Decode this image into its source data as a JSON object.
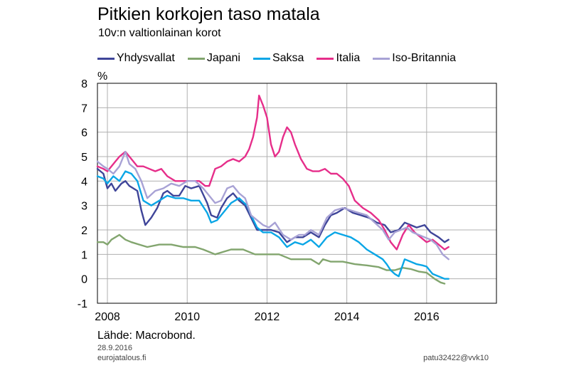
{
  "chart_data": {
    "type": "line",
    "title": "Pitkien korkojen taso matala",
    "subtitle": "10v:n valtionlainan korot",
    "ylabel": "%",
    "ylim": [
      -1,
      8
    ],
    "xlim": [
      2007.75,
      2017.75
    ],
    "y_ticks": [
      "-1",
      "0",
      "1",
      "2",
      "3",
      "4",
      "5",
      "6",
      "7",
      "8"
    ],
    "y_tick_values": [
      -1,
      0,
      1,
      2,
      3,
      4,
      5,
      6,
      7,
      8
    ],
    "x_ticks": [
      "2008",
      "2010",
      "2012",
      "2014",
      "2016"
    ],
    "x_tick_values": [
      2008,
      2010,
      2012,
      2014,
      2016
    ],
    "series": [
      {
        "name": "Yhdysvallat",
        "color": "#3f4599",
        "x": [
          2007.75,
          2007.9,
          2008.0,
          2008.1,
          2008.2,
          2008.35,
          2008.45,
          2008.55,
          2008.65,
          2008.75,
          2008.85,
          2008.95,
          2009.1,
          2009.25,
          2009.4,
          2009.5,
          2009.65,
          2009.8,
          2009.95,
          2010.1,
          2010.3,
          2010.5,
          2010.6,
          2010.75,
          2010.85,
          2011.0,
          2011.15,
          2011.3,
          2011.45,
          2011.6,
          2011.75,
          2011.9,
          2012.1,
          2012.3,
          2012.5,
          2012.7,
          2012.9,
          2013.1,
          2013.3,
          2013.45,
          2013.6,
          2013.75,
          2013.95,
          2014.15,
          2014.35,
          2014.55,
          2014.75,
          2014.95,
          2015.1,
          2015.3,
          2015.45,
          2015.6,
          2015.75,
          2015.95,
          2016.1,
          2016.3,
          2016.45,
          2016.55
        ],
        "values": [
          4.5,
          4.3,
          3.7,
          3.9,
          3.6,
          3.9,
          4.0,
          3.8,
          3.7,
          3.6,
          2.8,
          2.2,
          2.5,
          2.9,
          3.5,
          3.6,
          3.4,
          3.4,
          3.8,
          3.7,
          3.8,
          3.1,
          2.6,
          2.5,
          2.9,
          3.3,
          3.5,
          3.2,
          3.0,
          2.5,
          2.0,
          2.0,
          2.0,
          1.9,
          1.5,
          1.7,
          1.7,
          1.9,
          1.7,
          2.2,
          2.6,
          2.7,
          2.9,
          2.7,
          2.6,
          2.5,
          2.3,
          2.2,
          1.9,
          2.0,
          2.3,
          2.2,
          2.1,
          2.2,
          1.9,
          1.7,
          1.5,
          1.6
        ]
      },
      {
        "name": "Japani",
        "color": "#82a56e",
        "x": [
          2007.75,
          2007.9,
          2008.0,
          2008.1,
          2008.3,
          2008.45,
          2008.6,
          2008.8,
          2009.0,
          2009.3,
          2009.6,
          2009.9,
          2010.2,
          2010.4,
          2010.55,
          2010.7,
          2010.9,
          2011.1,
          2011.4,
          2011.7,
          2012.0,
          2012.3,
          2012.6,
          2012.9,
          2013.1,
          2013.3,
          2013.4,
          2013.6,
          2013.9,
          2014.2,
          2014.5,
          2014.8,
          2015.0,
          2015.2,
          2015.4,
          2015.6,
          2015.8,
          2016.0,
          2016.2,
          2016.35,
          2016.45
        ],
        "values": [
          1.5,
          1.5,
          1.4,
          1.6,
          1.8,
          1.6,
          1.5,
          1.4,
          1.3,
          1.4,
          1.4,
          1.3,
          1.3,
          1.2,
          1.1,
          1.0,
          1.1,
          1.2,
          1.2,
          1.0,
          1.0,
          1.0,
          0.8,
          0.8,
          0.8,
          0.6,
          0.8,
          0.7,
          0.7,
          0.6,
          0.55,
          0.48,
          0.35,
          0.35,
          0.45,
          0.4,
          0.3,
          0.25,
          0.0,
          -0.15,
          -0.2
        ]
      },
      {
        "name": "Saksa",
        "color": "#0aa6e6",
        "x": [
          2007.75,
          2007.9,
          2008.0,
          2008.15,
          2008.3,
          2008.45,
          2008.6,
          2008.75,
          2008.9,
          2009.1,
          2009.3,
          2009.5,
          2009.7,
          2009.9,
          2010.1,
          2010.3,
          2010.5,
          2010.6,
          2010.75,
          2010.9,
          2011.1,
          2011.3,
          2011.5,
          2011.6,
          2011.75,
          2011.9,
          2012.1,
          2012.3,
          2012.5,
          2012.7,
          2012.9,
          2013.1,
          2013.3,
          2013.5,
          2013.7,
          2013.9,
          2014.1,
          2014.3,
          2014.5,
          2014.7,
          2014.9,
          2015.0,
          2015.1,
          2015.2,
          2015.3,
          2015.45,
          2015.6,
          2015.75,
          2015.9,
          2016.0,
          2016.15,
          2016.3,
          2016.45,
          2016.55
        ],
        "values": [
          4.2,
          4.1,
          3.9,
          4.2,
          4.0,
          4.4,
          4.3,
          4.0,
          3.2,
          3.0,
          3.2,
          3.4,
          3.3,
          3.3,
          3.2,
          3.2,
          2.7,
          2.3,
          2.4,
          2.7,
          3.1,
          3.3,
          3.0,
          2.6,
          2.1,
          1.9,
          1.9,
          1.7,
          1.3,
          1.5,
          1.4,
          1.6,
          1.3,
          1.7,
          1.9,
          1.8,
          1.7,
          1.5,
          1.2,
          1.0,
          0.8,
          0.6,
          0.35,
          0.2,
          0.1,
          0.8,
          0.7,
          0.6,
          0.55,
          0.5,
          0.2,
          0.1,
          0.0,
          0.0
        ]
      },
      {
        "name": "Italia",
        "color": "#e62e8a",
        "x": [
          2007.75,
          2007.9,
          2008.0,
          2008.1,
          2008.2,
          2008.3,
          2008.45,
          2008.6,
          2008.75,
          2008.9,
          2009.05,
          2009.2,
          2009.35,
          2009.5,
          2009.7,
          2009.9,
          2010.1,
          2010.3,
          2010.45,
          2010.55,
          2010.7,
          2010.85,
          2011.0,
          2011.15,
          2011.3,
          2011.45,
          2011.55,
          2011.65,
          2011.75,
          2011.8,
          2011.9,
          2012.0,
          2012.1,
          2012.2,
          2012.3,
          2012.4,
          2012.5,
          2012.6,
          2012.7,
          2012.85,
          2013.0,
          2013.15,
          2013.3,
          2013.45,
          2013.6,
          2013.75,
          2013.9,
          2014.05,
          2014.2,
          2014.4,
          2014.6,
          2014.8,
          2014.95,
          2015.1,
          2015.25,
          2015.4,
          2015.55,
          2015.7,
          2015.85,
          2016.0,
          2016.15,
          2016.3,
          2016.45,
          2016.55
        ],
        "values": [
          4.6,
          4.5,
          4.4,
          4.6,
          4.8,
          5.0,
          5.2,
          4.9,
          4.6,
          4.6,
          4.5,
          4.4,
          4.5,
          4.2,
          4.0,
          4.0,
          4.0,
          4.0,
          3.8,
          3.8,
          4.5,
          4.6,
          4.8,
          4.9,
          4.8,
          5.0,
          5.3,
          5.8,
          6.6,
          7.5,
          7.1,
          6.6,
          5.5,
          5.0,
          5.2,
          5.8,
          6.2,
          6.0,
          5.5,
          4.9,
          4.5,
          4.4,
          4.4,
          4.5,
          4.3,
          4.3,
          4.1,
          3.8,
          3.2,
          2.9,
          2.7,
          2.4,
          2.0,
          1.5,
          1.2,
          1.8,
          2.2,
          1.9,
          1.7,
          1.5,
          1.6,
          1.4,
          1.2,
          1.3
        ]
      },
      {
        "name": "Iso-Britannia",
        "color": "#a8a2d5",
        "x": [
          2007.75,
          2007.9,
          2008.0,
          2008.15,
          2008.3,
          2008.45,
          2008.55,
          2008.7,
          2008.85,
          2009.0,
          2009.2,
          2009.4,
          2009.6,
          2009.8,
          2010.0,
          2010.2,
          2010.4,
          2010.55,
          2010.7,
          2010.85,
          2011.0,
          2011.15,
          2011.3,
          2011.45,
          2011.6,
          2011.75,
          2011.9,
          2012.05,
          2012.2,
          2012.4,
          2012.6,
          2012.8,
          2012.95,
          2013.1,
          2013.3,
          2013.5,
          2013.7,
          2013.9,
          2014.1,
          2014.3,
          2014.5,
          2014.7,
          2014.9,
          2015.05,
          2015.2,
          2015.35,
          2015.5,
          2015.65,
          2015.8,
          2015.95,
          2016.1,
          2016.25,
          2016.4,
          2016.55
        ],
        "values": [
          4.8,
          4.6,
          4.5,
          4.3,
          4.6,
          5.2,
          4.7,
          4.5,
          4.0,
          3.3,
          3.6,
          3.7,
          3.9,
          3.8,
          4.0,
          4.0,
          3.7,
          3.4,
          3.1,
          3.2,
          3.7,
          3.8,
          3.5,
          3.3,
          2.6,
          2.4,
          2.2,
          2.1,
          2.3,
          1.8,
          1.6,
          1.8,
          1.8,
          2.0,
          1.8,
          2.5,
          2.8,
          2.9,
          2.8,
          2.7,
          2.6,
          2.3,
          2.0,
          1.6,
          1.9,
          2.0,
          2.1,
          1.9,
          1.8,
          1.7,
          1.6,
          1.4,
          1.0,
          0.8
        ]
      }
    ],
    "source": "Lähde: Macrobond.",
    "date": "28.9.2016",
    "site": "eurojatalous.fi",
    "code": "patu32422@vvk10"
  }
}
